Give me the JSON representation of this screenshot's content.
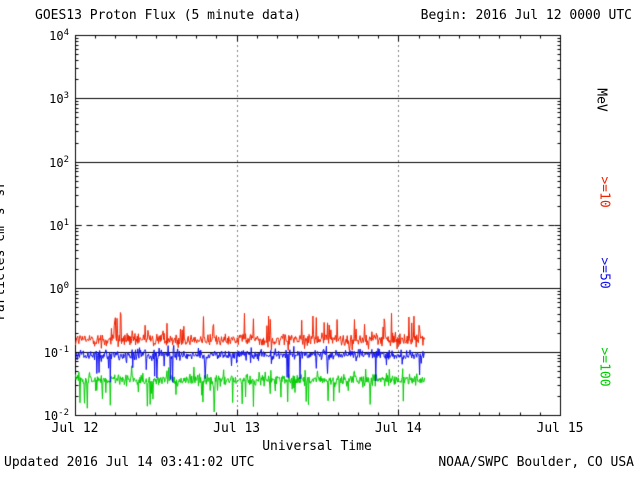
{
  "header": {
    "title": "GOES13 Proton Flux (5 minute data)",
    "begin": "Begin: 2016 Jul 12 0000 UTC"
  },
  "footer": {
    "updated": "Updated 2016 Jul 14 03:41:02 UTC",
    "source": "NOAA/SWPC Boulder, CO USA"
  },
  "chart_data": {
    "type": "line",
    "title": "GOES13 Proton Flux (5 minute data)",
    "xlabel": "Universal Time",
    "ylabel_segments": [
      {
        "t": "Particles  cm"
      },
      {
        "t": "-2",
        "sup": true
      },
      {
        "t": "s"
      },
      {
        "t": "-1",
        "sup": true
      },
      {
        "t": "sr"
      },
      {
        "t": "-1",
        "sup": true
      }
    ],
    "right_axis_unit": "MeV",
    "x_range_days": 3,
    "x_tick_labels": [
      "Jul 12",
      "Jul 13",
      "Jul 14",
      "Jul 15"
    ],
    "y_scale": "log",
    "y_log_range": [
      -2,
      4
    ],
    "y_tick_exponents": [
      "4",
      "3",
      "2",
      "1",
      "0",
      "-1",
      "-2"
    ],
    "solid_gridline_exponents": [
      3,
      2,
      0,
      -1
    ],
    "dashed_gridline_exponents": [
      1
    ],
    "vertical_dotted_days": [
      1,
      2
    ],
    "grid_color": "#000000",
    "sample_interval_days": 0.003472,
    "data_end_day": 2.16,
    "series": [
      {
        "name": ">=10 MeV proton flux",
        "label": ">=10",
        "color": "#ee2200",
        "log10_base": -0.8,
        "log10_amp": 0.14,
        "spike_prob": 0.07,
        "spike_up": 0.38,
        "spike_down": 0.14,
        "seed": 12345,
        "approx_range_flux": [
          0.08,
          0.45
        ]
      },
      {
        "name": ">=50 MeV proton flux",
        "label": ">=50",
        "color": "#1111ee",
        "log10_base": -1.04,
        "log10_amp": 0.12,
        "spike_prob": 0.07,
        "spike_up": 0.12,
        "spike_down": 0.42,
        "seed": 54321,
        "approx_range_flux": [
          0.03,
          0.15
        ]
      },
      {
        "name": ">=100 MeV proton flux",
        "label": ">=100",
        "color": "#00cc00",
        "log10_base": -1.44,
        "log10_amp": 0.13,
        "spike_prob": 0.07,
        "spike_up": 0.18,
        "spike_down": 0.45,
        "seed": 99999,
        "approx_range_flux": [
          0.013,
          0.07
        ]
      }
    ]
  }
}
